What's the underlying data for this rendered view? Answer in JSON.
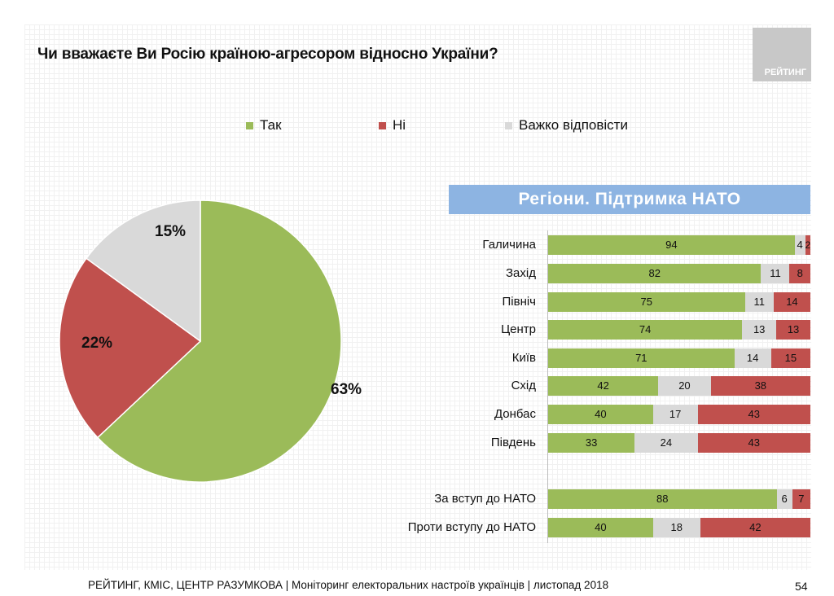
{
  "title": "Чи вважаєте Ви Росію країною-агресором відносно України?",
  "logo_text": "РЕЙТИНГ",
  "colors": {
    "yes": "#9bbb59",
    "no": "#c0504d",
    "hard": "#d9d9d9",
    "banner": "#8db4e2"
  },
  "legend": [
    {
      "label": "Так",
      "color": "#9bbb59"
    },
    {
      "label": "Ні",
      "color": "#c0504d"
    },
    {
      "label": "Важко відповісти",
      "color": "#d9d9d9"
    }
  ],
  "chart_data": [
    {
      "type": "pie",
      "categories": [
        "Так",
        "Ні",
        "Важко відповісти"
      ],
      "values": [
        63,
        22,
        15
      ],
      "value_labels": [
        "63%",
        "22%",
        "15%"
      ]
    },
    {
      "type": "bar",
      "orientation": "horizontal-stacked",
      "title": "Регіони. Підтримка НАТО",
      "categories": [
        "Галичина",
        "Захід",
        "Північ",
        "Центр",
        "Київ",
        "Схід",
        "Донбас",
        "Південь",
        "За вступ до НАТО",
        "Проти вступу до НАТО"
      ],
      "series": [
        {
          "name": "Так",
          "values": [
            94,
            82,
            75,
            74,
            71,
            42,
            40,
            33,
            88,
            40
          ]
        },
        {
          "name": "Важко відповісти",
          "values": [
            4,
            11,
            11,
            13,
            14,
            20,
            17,
            24,
            6,
            18
          ]
        },
        {
          "name": "Ні",
          "values": [
            2,
            8,
            14,
            13,
            15,
            38,
            43,
            43,
            7,
            42
          ]
        }
      ]
    }
  ],
  "footer": {
    "source": "РЕЙТИНГ, КМІС, ЦЕНТР РАЗУМКОВА |  Моніторинг електоральних настроїв українців | листопад 2018",
    "page": "54"
  }
}
